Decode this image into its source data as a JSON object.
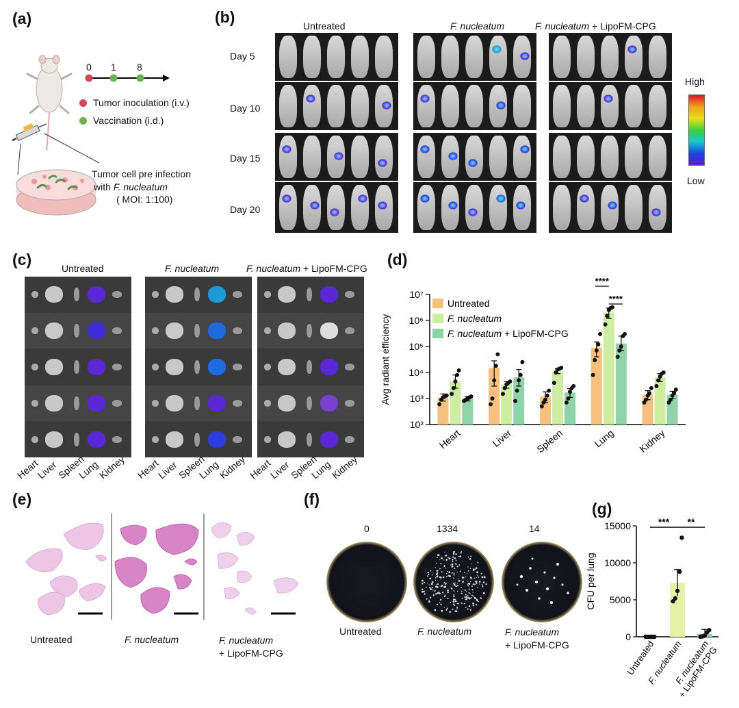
{
  "panels": {
    "a": {
      "label": "(a)",
      "timeline": [
        "0",
        "1",
        "8"
      ],
      "legend": [
        {
          "text": "Tumor inoculation (i.v.)",
          "color": "#d9435a"
        },
        {
          "text": "Vaccination (i.d.)",
          "color": "#6ab04c"
        }
      ],
      "caption_line1": "Tumor cell pre infection",
      "caption_line2_prefix": "with ",
      "caption_line2_italic": "F. nucleatum",
      "caption_line3": "( MOI: 1:100)"
    },
    "b": {
      "label": "(b)",
      "groups": [
        {
          "italic": "",
          "plain": "Untreated"
        },
        {
          "italic": "F. nucleatum",
          "plain": ""
        },
        {
          "italic": "F. nucleatum",
          "plain": " + LipoFM-CPG"
        }
      ],
      "days": [
        "Day 5",
        "Day 10",
        "Day 15",
        "Day 20"
      ],
      "scale_high": "High",
      "scale_low": "Low"
    },
    "c": {
      "label": "(c)",
      "groups": [
        {
          "italic": "",
          "plain": "Untreated"
        },
        {
          "italic": "F. nucleatum",
          "plain": ""
        },
        {
          "italic": "F. nucleatum",
          "plain": " + LipoFM-CPG"
        }
      ],
      "organs": [
        "Heart",
        "Liver",
        "Spleen",
        "Lung",
        "Kidney"
      ]
    },
    "e": {
      "label": "(e)",
      "captions": [
        {
          "italic": "",
          "plain": "Untreated"
        },
        {
          "italic": "F. nucleatum",
          "plain": ""
        },
        {
          "italic": "F. nucleatum",
          "plain": "+ LipoFM-CPG"
        }
      ]
    },
    "f": {
      "label": "(f)",
      "counts": [
        "0",
        "1334",
        "14"
      ],
      "captions": [
        {
          "italic": "",
          "plain": "Untreated"
        },
        {
          "italic": "F. nucleatum",
          "plain": ""
        },
        {
          "italic": "F. nucleatum",
          "plain": "+ LipoFM-CPG"
        }
      ]
    }
  },
  "chart_data": [
    {
      "panel": "(d)",
      "type": "bar",
      "ylabel": "Avg radiant efficiency",
      "yscale": "log",
      "ylim": [
        100,
        10000000
      ],
      "yticks": [
        "10²",
        "10³",
        "10⁴",
        "10⁵",
        "10⁶",
        "10⁷"
      ],
      "categories": [
        "Heart",
        "Liver",
        "Spleen",
        "Lung",
        "Kidney"
      ],
      "colors": [
        "#f6c07f",
        "#cdeea0",
        "#8fd3a9"
      ],
      "legend": [
        {
          "italic": "",
          "plain": "Untreated"
        },
        {
          "italic": "F. nucleatum",
          "plain": ""
        },
        {
          "italic": "F. nucleatum",
          "plain": " + LipoFM-CPG"
        }
      ],
      "legend_position": "top-left",
      "series": [
        {
          "values": [
            1100,
            15000,
            1200,
            90000,
            1400
          ],
          "errors": [
            [
              800,
              1500
            ],
            [
              3000,
              28000
            ],
            [
              700,
              1800
            ],
            [
              40000,
              150000
            ],
            [
              900,
              2000
            ]
          ],
          "points": [
            [
              600,
              900,
              1100,
              1200,
              1300
            ],
            [
              600,
              1000,
              5000,
              18000,
              50000
            ],
            [
              500,
              700,
              900,
              1300,
              2000
            ],
            [
              8000,
              30000,
              70000,
              120000,
              300000
            ],
            [
              700,
              900,
              1300,
              1600,
              2500
            ]
          ]
        },
        {
          "values": [
            4500,
            3500,
            11000,
            2000000,
            6500
          ],
          "errors": [
            [
              2500,
              8000
            ],
            [
              2500,
              4500
            ],
            [
              9000,
              14000
            ],
            [
              1200000,
              3000000
            ],
            [
              4500,
              9000
            ]
          ],
          "points": [
            [
              1500,
              2500,
              4500,
              8000,
              12000
            ],
            [
              1500,
              2500,
              3500,
              4000,
              4500
            ],
            [
              4000,
              10000,
              13000,
              14000,
              15000
            ],
            [
              700000,
              1500000,
              2500000,
              3000000,
              3200000
            ],
            [
              3000,
              5000,
              7000,
              9000,
              10000
            ]
          ]
        },
        {
          "values": [
            1000,
            6500,
            1700,
            130000,
            1400
          ],
          "errors": [
            [
              800,
              1200
            ],
            [
              3000,
              13000
            ],
            [
              1100,
              2400
            ],
            [
              70000,
              250000
            ],
            [
              1000,
              1900
            ]
          ],
          "points": [
            [
              800,
              900,
              1000,
              1100,
              1200
            ],
            [
              800,
              2000,
              5000,
              8000,
              25000
            ],
            [
              700,
              1000,
              1800,
              2500,
              3000
            ],
            [
              40000,
              70000,
              100000,
              250000,
              300000
            ],
            [
              700,
              900,
              1300,
              1600,
              2200
            ]
          ]
        }
      ],
      "annotations": [
        {
          "text": "****",
          "between": [
            "Untreated",
            "F. nucleatum"
          ],
          "category": "Lung"
        },
        {
          "text": "****",
          "between": [
            "F. nucleatum",
            "F. nucleatum + LipoFM-CPG"
          ],
          "category": "Lung"
        }
      ]
    },
    {
      "panel": "(g)",
      "type": "bar",
      "ylabel": "CFU per lung",
      "ylim": [
        0,
        15000
      ],
      "yticks": [
        "0",
        "5000",
        "10000",
        "15000"
      ],
      "categories": [
        "Untreated",
        "F. nucleatum",
        "F. nucleatum + LipoFM-CPG"
      ],
      "category_labels": [
        {
          "italic": "",
          "plain": "Untreated"
        },
        {
          "italic": "F. nucleatum",
          "plain": ""
        },
        {
          "italic": "F. nucleatum",
          "plain": "+ LipoFM-CPG"
        }
      ],
      "colors": [
        "#f6c07f",
        "#e6f2a6",
        "#8fd3a9"
      ],
      "values": [
        0,
        7300,
        400
      ],
      "errors": [
        [
          0,
          0
        ],
        [
          5500,
          9100
        ],
        [
          50,
          1000
        ]
      ],
      "points": [
        [
          0,
          0,
          0,
          0,
          0
        ],
        [
          4800,
          5200,
          6200,
          8800,
          13400
        ],
        [
          0,
          50,
          150,
          600,
          900
        ]
      ],
      "annotations": [
        {
          "text": "***",
          "between": [
            "Untreated",
            "F. nucleatum"
          ]
        },
        {
          "text": "**",
          "between": [
            "F. nucleatum",
            "F. nucleatum + LipoFM-CPG"
          ]
        }
      ]
    }
  ]
}
